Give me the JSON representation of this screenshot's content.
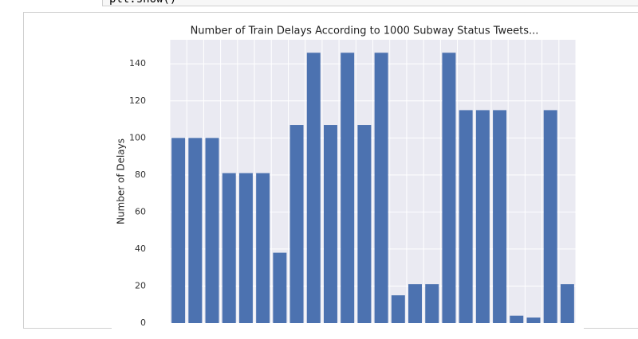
{
  "code": "plt.show()",
  "chart_data": {
    "type": "bar",
    "title": "Number of Train Delays According to 1000 Subway Status Tweets...",
    "y_label": "Number of Delays",
    "values": [
      100,
      100,
      100,
      81,
      81,
      81,
      38,
      107,
      146,
      107,
      146,
      107,
      146,
      15,
      21,
      21,
      146,
      115,
      115,
      115,
      4,
      3,
      115,
      21
    ],
    "color": "#4c72b0",
    "ylim": [
      0,
      153
    ],
    "yticks": [
      0,
      20,
      40,
      60,
      80,
      100,
      120,
      140
    ],
    "grid": true
  }
}
